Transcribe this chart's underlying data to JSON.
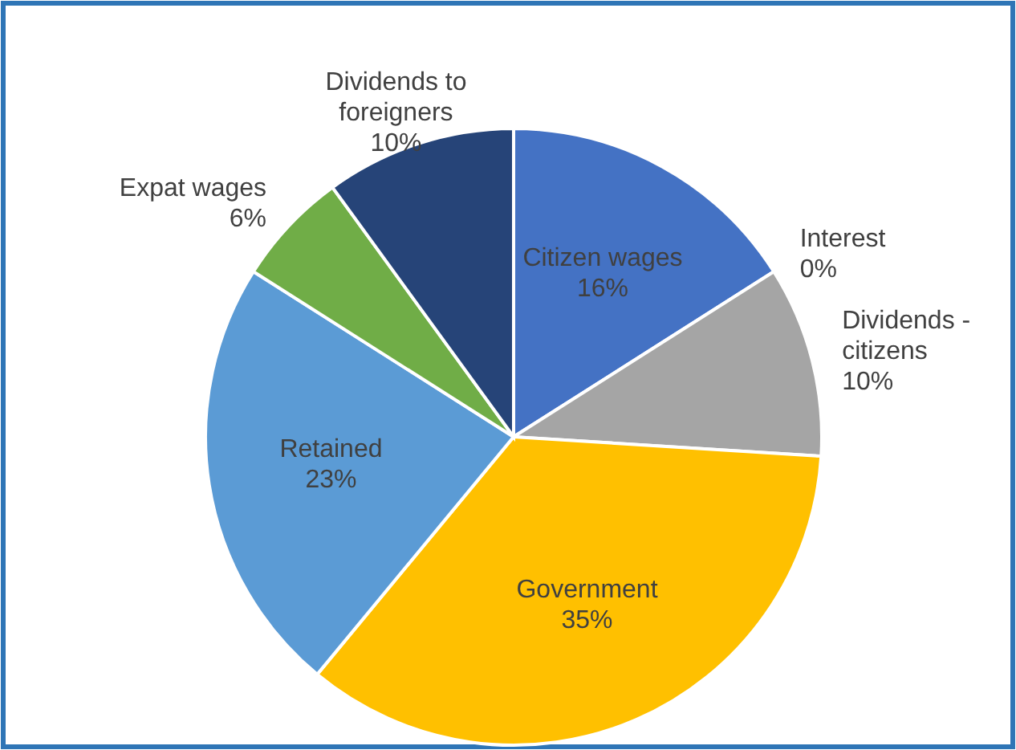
{
  "chart_data": {
    "type": "pie",
    "categories": [
      "Citizen wages",
      "Interest",
      "Dividends - citizens",
      "Government",
      "Retained",
      "Expat wages",
      "Dividends to foreigners"
    ],
    "values": [
      16,
      0,
      10,
      35,
      23,
      6,
      10
    ],
    "value_labels": [
      "16%",
      "0%",
      "10%",
      "35%",
      "23%",
      "6%",
      "10%"
    ],
    "colors": [
      "#4472c4",
      "#ed7d31",
      "#a5a5a5",
      "#ffc000",
      "#5b9bd5",
      "#70ad47",
      "#264478"
    ]
  }
}
